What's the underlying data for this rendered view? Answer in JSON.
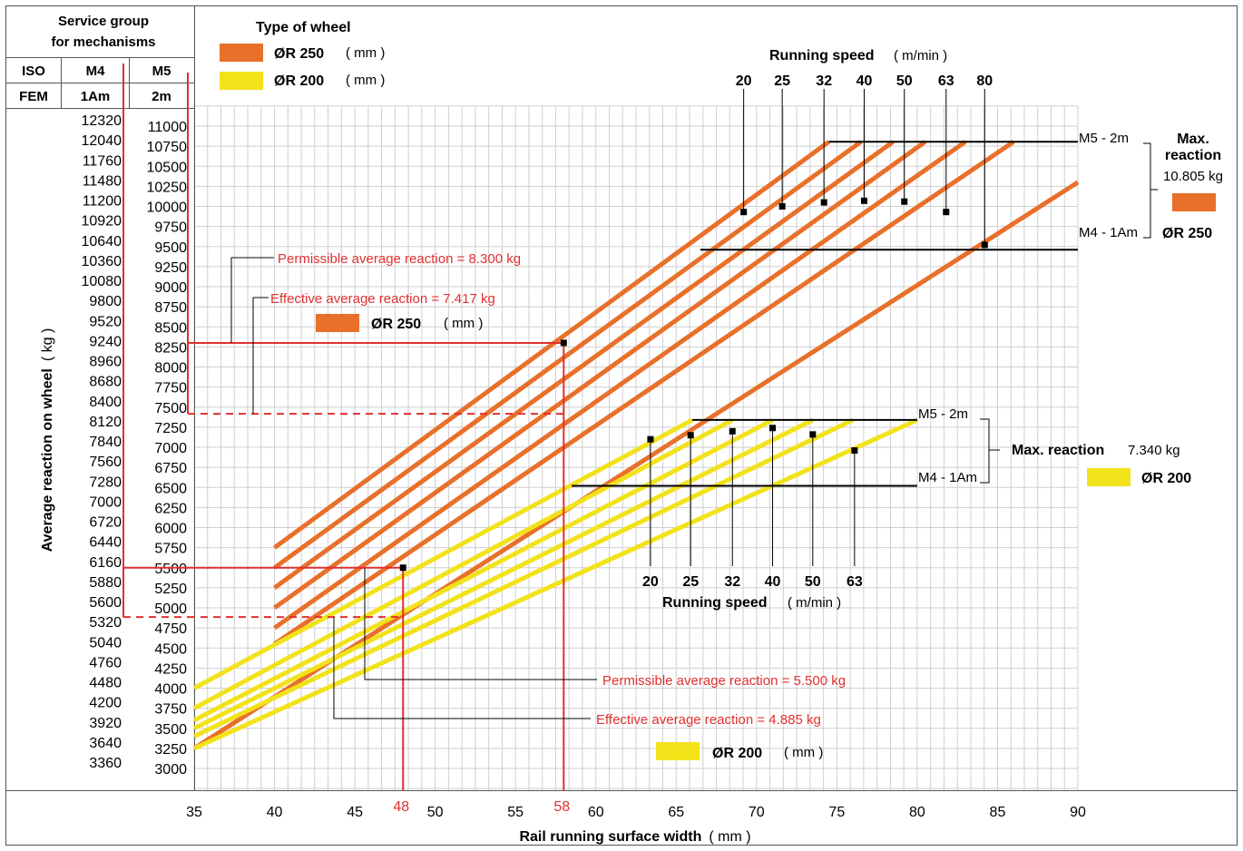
{
  "colors": {
    "orange": "#E8702A",
    "yellow": "#F2E21A",
    "red": "#E03030",
    "grid": "#CFCFCF",
    "black": "#000000"
  },
  "header": {
    "service_group": [
      "Service group",
      "for mechanisms"
    ],
    "iso_label": "ISO",
    "fem_label": "FEM",
    "m4": "M4",
    "m5": "M5",
    "am1": "1Am",
    "m2": "2m"
  },
  "wheel_type": {
    "title": "Type of wheel",
    "items": [
      {
        "label": "ØR  250",
        "unit": "( mm )",
        "color": "orange"
      },
      {
        "label": "ØR  200",
        "unit": "( mm )",
        "color": "yellow"
      }
    ]
  },
  "chart_data": {
    "type": "line",
    "xlabel": "Rail running surface width",
    "xlabel_unit": "( mm )",
    "ylabel": "Average reaction on wheel",
    "ylabel_unit": "( kg )",
    "xlim": [
      35,
      90
    ],
    "x_ticks": [
      35,
      40,
      45,
      50,
      55,
      60,
      65,
      70,
      75,
      80,
      85,
      90
    ],
    "x_highlight_ticks": [
      48,
      58
    ],
    "ylim": [
      3000,
      11000
    ],
    "y_ticks_m5": [
      11000,
      10750,
      10500,
      10250,
      10000,
      9750,
      9500,
      9250,
      9000,
      8750,
      8500,
      8250,
      8000,
      7750,
      7500,
      7250,
      7000,
      6750,
      6500,
      6250,
      6000,
      5750,
      5500,
      5250,
      5000,
      4750,
      4500,
      4250,
      4000,
      3750,
      3500,
      3250,
      3000
    ],
    "y_ticks_m4": [
      12320,
      12040,
      11760,
      11480,
      11200,
      10920,
      10640,
      10360,
      10080,
      9800,
      9520,
      9240,
      8960,
      8680,
      8400,
      8120,
      7840,
      7560,
      7280,
      7000,
      6720,
      6440,
      6160,
      5880,
      5600,
      5320,
      5040,
      4760,
      4480,
      4200,
      3920,
      3640,
      3360
    ],
    "grid": true,
    "series_250": {
      "name": "ØR 250",
      "color": "orange",
      "speeds": [
        20,
        25,
        32,
        40,
        50,
        63,
        80
      ],
      "lines": [
        {
          "x": [
            40,
            74.5
          ],
          "y": [
            5750,
            10805
          ]
        },
        {
          "x": [
            40,
            76.5
          ],
          "y": [
            5500,
            10805
          ]
        },
        {
          "x": [
            40,
            78.5
          ],
          "y": [
            5250,
            10805
          ]
        },
        {
          "x": [
            40,
            80.5
          ],
          "y": [
            5000,
            10805
          ]
        },
        {
          "x": [
            40,
            83.0
          ],
          "y": [
            4750,
            10805
          ]
        },
        {
          "x": [
            40,
            86.0
          ],
          "y": [
            4550,
            10805
          ]
        },
        {
          "x": [
            35,
            90.0
          ],
          "y": [
            3250,
            10300
          ]
        }
      ],
      "max_line": {
        "x": [
          74.5,
          90
        ],
        "y": 10805
      },
      "min_line": {
        "x": [
          66.5,
          90
        ],
        "y": 9460
      },
      "markers": [
        {
          "speed": 20,
          "x": 69.2,
          "y": 9930
        },
        {
          "speed": 25,
          "x": 71.6,
          "y": 10000
        },
        {
          "speed": 32,
          "x": 74.2,
          "y": 10050
        },
        {
          "speed": 40,
          "x": 76.7,
          "y": 10070
        },
        {
          "speed": 50,
          "x": 79.2,
          "y": 10060
        },
        {
          "speed": 63,
          "x": 81.8,
          "y": 9930
        },
        {
          "speed": 80,
          "x": 84.2,
          "y": 9520
        }
      ]
    },
    "series_200": {
      "name": "ØR 200",
      "color": "yellow",
      "speeds": [
        20,
        25,
        32,
        40,
        50,
        63
      ],
      "lines": [
        {
          "x": [
            35,
            66.0
          ],
          "y": [
            4000,
            7340
          ]
        },
        {
          "x": [
            35,
            68.5
          ],
          "y": [
            3750,
            7340
          ]
        },
        {
          "x": [
            35,
            71.0
          ],
          "y": [
            3600,
            7340
          ]
        },
        {
          "x": [
            35,
            73.5
          ],
          "y": [
            3500,
            7340
          ]
        },
        {
          "x": [
            35,
            76.0
          ],
          "y": [
            3400,
            7340
          ]
        },
        {
          "x": [
            35,
            80.0
          ],
          "y": [
            3250,
            7340
          ]
        }
      ],
      "max_line": {
        "x": [
          66.0,
          80
        ],
        "y": 7340
      },
      "min_line": {
        "x": [
          58.5,
          80
        ],
        "y": 6520
      },
      "markers": [
        {
          "speed": 20,
          "x": 63.4,
          "y": 7100
        },
        {
          "speed": 25,
          "x": 65.9,
          "y": 7150
        },
        {
          "speed": 32,
          "x": 68.5,
          "y": 7200
        },
        {
          "speed": 40,
          "x": 71.0,
          "y": 7240
        },
        {
          "speed": 50,
          "x": 73.5,
          "y": 7160
        },
        {
          "speed": 63,
          "x": 76.1,
          "y": 6960
        }
      ]
    }
  },
  "annotations": {
    "running_speed_title": "Running speed",
    "running_speed_unit": "( m/min )",
    "m5_2m": "M5 - 2m",
    "m4_1am": "M4 - 1Am",
    "max_reaction_250_a": "Max.",
    "max_reaction_250_b": "reaction",
    "max_reaction_250_val": "10.805 kg",
    "legend_250": "ØR  250",
    "max_reaction_200": "Max. reaction",
    "max_reaction_200_val": "7.340 kg",
    "legend_200": "ØR  200",
    "perm_250": "Permissible average reaction = 8.300 kg",
    "eff_250": "Effective average reaction = 7.417 kg",
    "perm_200": "Permissible average reaction = 5.500 kg",
    "eff_200": "Effective average reaction = 4.885 kg",
    "mid_250_label": "ØR  250",
    "mid_250_unit": "( mm )",
    "bottom_200_label": "ØR  200",
    "bottom_200_unit": "( mm )",
    "example_250": {
      "x": 58,
      "perm_y": 8300,
      "eff_y": 7417
    },
    "example_200": {
      "x": 48,
      "perm_y": 5500,
      "eff_y": 4885
    }
  }
}
